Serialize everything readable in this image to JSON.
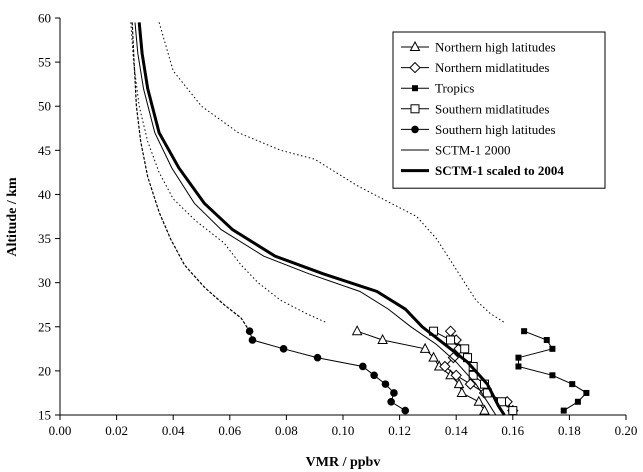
{
  "chart_data": {
    "type": "line",
    "xlabel": "VMR / ppbv",
    "ylabel": "Altitude / km",
    "xlim": [
      0,
      0.2
    ],
    "ylim": [
      15,
      60
    ],
    "xticks": [
      "0.00",
      "0.02",
      "0.04",
      "0.06",
      "0.08",
      "0.10",
      "0.12",
      "0.14",
      "0.16",
      "0.18",
      "0.20"
    ],
    "yticks": [
      "15",
      "20",
      "25",
      "30",
      "35",
      "40",
      "45",
      "50",
      "55",
      "60"
    ],
    "grid": false,
    "legend_position": "top-right",
    "series": [
      {
        "name": "Northern high latitudes",
        "marker": "triangle-open",
        "points": [
          [
            0.105,
            24.5
          ],
          [
            0.114,
            23.5
          ],
          [
            0.129,
            22.5
          ],
          [
            0.132,
            21.5
          ],
          [
            0.134,
            20.5
          ],
          [
            0.138,
            19.5
          ],
          [
            0.141,
            18.5
          ],
          [
            0.142,
            17.5
          ],
          [
            0.148,
            16.5
          ],
          [
            0.15,
            15.5
          ]
        ]
      },
      {
        "name": "Northern midlatitudes",
        "marker": "diamond-open",
        "points": [
          [
            0.138,
            24.5
          ],
          [
            0.14,
            23.5
          ],
          [
            0.141,
            22.5
          ],
          [
            0.139,
            21.5
          ],
          [
            0.136,
            20.5
          ],
          [
            0.14,
            19.5
          ],
          [
            0.145,
            18.5
          ],
          [
            0.15,
            17.5
          ],
          [
            0.158,
            16.5
          ],
          [
            0.16,
            15.5
          ]
        ]
      },
      {
        "name": "Tropics",
        "marker": "square-filled",
        "points": [
          [
            0.164,
            24.5
          ],
          [
            0.172,
            23.5
          ],
          [
            0.174,
            22.5
          ],
          [
            0.162,
            21.5
          ],
          [
            0.162,
            20.5
          ],
          [
            0.174,
            19.5
          ],
          [
            0.181,
            18.5
          ],
          [
            0.186,
            17.5
          ],
          [
            0.183,
            16.5
          ],
          [
            0.178,
            15.5
          ]
        ]
      },
      {
        "name": "Southern midlatitudes",
        "marker": "square-open",
        "points": [
          [
            0.132,
            24.5
          ],
          [
            0.138,
            23.5
          ],
          [
            0.143,
            22.5
          ],
          [
            0.144,
            21.5
          ],
          [
            0.146,
            20.5
          ],
          [
            0.146,
            19.5
          ],
          [
            0.15,
            18.5
          ],
          [
            0.151,
            17.5
          ],
          [
            0.156,
            16.5
          ],
          [
            0.16,
            15.5
          ]
        ]
      },
      {
        "name": "Southern high latitudes",
        "marker": "circle-filled",
        "points": [
          [
            0.067,
            24.5
          ],
          [
            0.068,
            23.5
          ],
          [
            0.079,
            22.5
          ],
          [
            0.091,
            21.5
          ],
          [
            0.107,
            20.5
          ],
          [
            0.111,
            19.5
          ],
          [
            0.115,
            18.5
          ],
          [
            0.118,
            17.5
          ],
          [
            0.117,
            16.5
          ],
          [
            0.122,
            15.5
          ]
        ]
      },
      {
        "name": "SCTM-1 2000",
        "style": "thin",
        "points": [
          [
            0.0265,
            59.5
          ],
          [
            0.0275,
            56
          ],
          [
            0.0295,
            52
          ],
          [
            0.0335,
            47
          ],
          [
            0.0395,
            43
          ],
          [
            0.0475,
            39
          ],
          [
            0.057,
            36
          ],
          [
            0.072,
            33
          ],
          [
            0.088,
            31
          ],
          [
            0.106,
            29
          ],
          [
            0.116,
            27
          ],
          [
            0.124,
            25
          ],
          [
            0.133,
            23
          ],
          [
            0.14,
            21
          ],
          [
            0.147,
            18.5
          ],
          [
            0.152,
            16
          ],
          [
            0.154,
            15
          ]
        ]
      },
      {
        "name": "SCTM-1 scaled to 2004",
        "style": "thick",
        "points": [
          [
            0.028,
            59.5
          ],
          [
            0.029,
            56
          ],
          [
            0.031,
            52
          ],
          [
            0.035,
            47
          ],
          [
            0.042,
            43
          ],
          [
            0.051,
            39
          ],
          [
            0.061,
            36
          ],
          [
            0.076,
            33
          ],
          [
            0.093,
            31
          ],
          [
            0.112,
            29
          ],
          [
            0.122,
            27
          ],
          [
            0.128,
            25
          ],
          [
            0.136,
            23
          ],
          [
            0.144,
            21
          ],
          [
            0.151,
            18.5
          ],
          [
            0.155,
            16
          ],
          [
            0.157,
            15
          ]
        ]
      },
      {
        "name": "",
        "style": "dotted",
        "points": [
          [
            0.035,
            59.5
          ],
          [
            0.04,
            54
          ],
          [
            0.05,
            50
          ],
          [
            0.063,
            47
          ],
          [
            0.078,
            45
          ],
          [
            0.09,
            44
          ],
          [
            0.105,
            41
          ],
          [
            0.117,
            39
          ],
          [
            0.126,
            37.5
          ],
          [
            0.133,
            35
          ],
          [
            0.139,
            32
          ],
          [
            0.143,
            30
          ],
          [
            0.147,
            28
          ],
          [
            0.152,
            26.5
          ],
          [
            0.157,
            25.5
          ]
        ]
      },
      {
        "name": "",
        "style": "dotted",
        "points": [
          [
            0.025,
            59.5
          ],
          [
            0.026,
            55
          ],
          [
            0.028,
            50
          ],
          [
            0.031,
            46
          ],
          [
            0.035,
            42.5
          ],
          [
            0.04,
            39.5
          ],
          [
            0.048,
            37
          ],
          [
            0.058,
            34.5
          ],
          [
            0.064,
            32
          ],
          [
            0.07,
            30
          ],
          [
            0.078,
            28
          ],
          [
            0.087,
            26.5
          ],
          [
            0.094,
            25.5
          ]
        ]
      },
      {
        "name": "",
        "style": "dashed-fine",
        "points": [
          [
            0.0255,
            59.5
          ],
          [
            0.0262,
            55
          ],
          [
            0.027,
            50
          ],
          [
            0.0285,
            46
          ],
          [
            0.031,
            42
          ],
          [
            0.035,
            38
          ],
          [
            0.039,
            35
          ],
          [
            0.044,
            32
          ],
          [
            0.051,
            29.5
          ],
          [
            0.058,
            27.5
          ],
          [
            0.064,
            26
          ],
          [
            0.067,
            24.5
          ]
        ]
      }
    ]
  }
}
